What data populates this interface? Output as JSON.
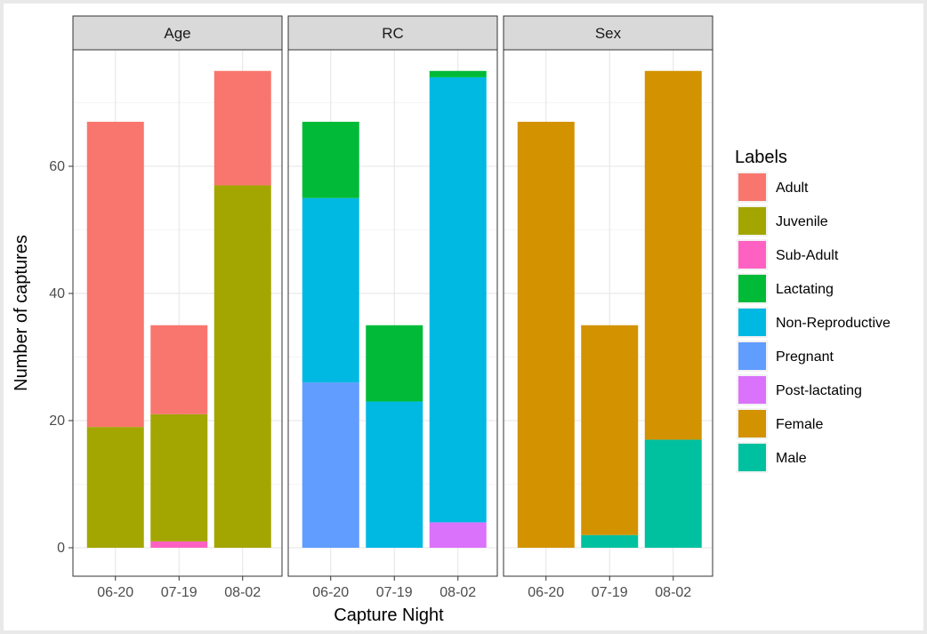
{
  "chart_data": {
    "type": "bar",
    "stacked": true,
    "xlabel": "Capture Night",
    "ylabel": "Number of captures",
    "ylim": [
      0,
      78
    ],
    "yticks": [
      0,
      20,
      40,
      60
    ],
    "grid": true,
    "legend": {
      "title": "Labels",
      "position": "right",
      "entries": [
        {
          "name": "Adult",
          "color": "#F8766D"
        },
        {
          "name": "Juvenile",
          "color": "#A3A500"
        },
        {
          "name": "Sub-Adult",
          "color": "#FF61C3"
        },
        {
          "name": "Lactating",
          "color": "#00BA38"
        },
        {
          "name": "Non-Reproductive",
          "color": "#00B9E3"
        },
        {
          "name": "Pregnant",
          "color": "#619CFF"
        },
        {
          "name": "Post-lactating",
          "color": "#DB72FB"
        },
        {
          "name": "Female",
          "color": "#D39200"
        },
        {
          "name": "Male",
          "color": "#00C19F"
        }
      ]
    },
    "categories": [
      "06-20",
      "07-19",
      "08-02"
    ],
    "panels": [
      {
        "title": "Age",
        "series": [
          {
            "name": "Sub-Adult",
            "values": [
              0,
              1,
              0
            ]
          },
          {
            "name": "Juvenile",
            "values": [
              19,
              20,
              57
            ]
          },
          {
            "name": "Adult",
            "values": [
              48,
              14,
              18
            ]
          }
        ]
      },
      {
        "title": "RC",
        "series": [
          {
            "name": "Post-lactating",
            "values": [
              0,
              0,
              4
            ]
          },
          {
            "name": "Pregnant",
            "values": [
              26,
              0,
              0
            ]
          },
          {
            "name": "Non-Reproductive",
            "values": [
              29,
              23,
              70
            ]
          },
          {
            "name": "Lactating",
            "values": [
              12,
              12,
              1
            ]
          }
        ]
      },
      {
        "title": "Sex",
        "series": [
          {
            "name": "Male",
            "values": [
              0,
              2,
              17
            ]
          },
          {
            "name": "Female",
            "values": [
              67,
              33,
              58
            ]
          }
        ]
      }
    ]
  }
}
